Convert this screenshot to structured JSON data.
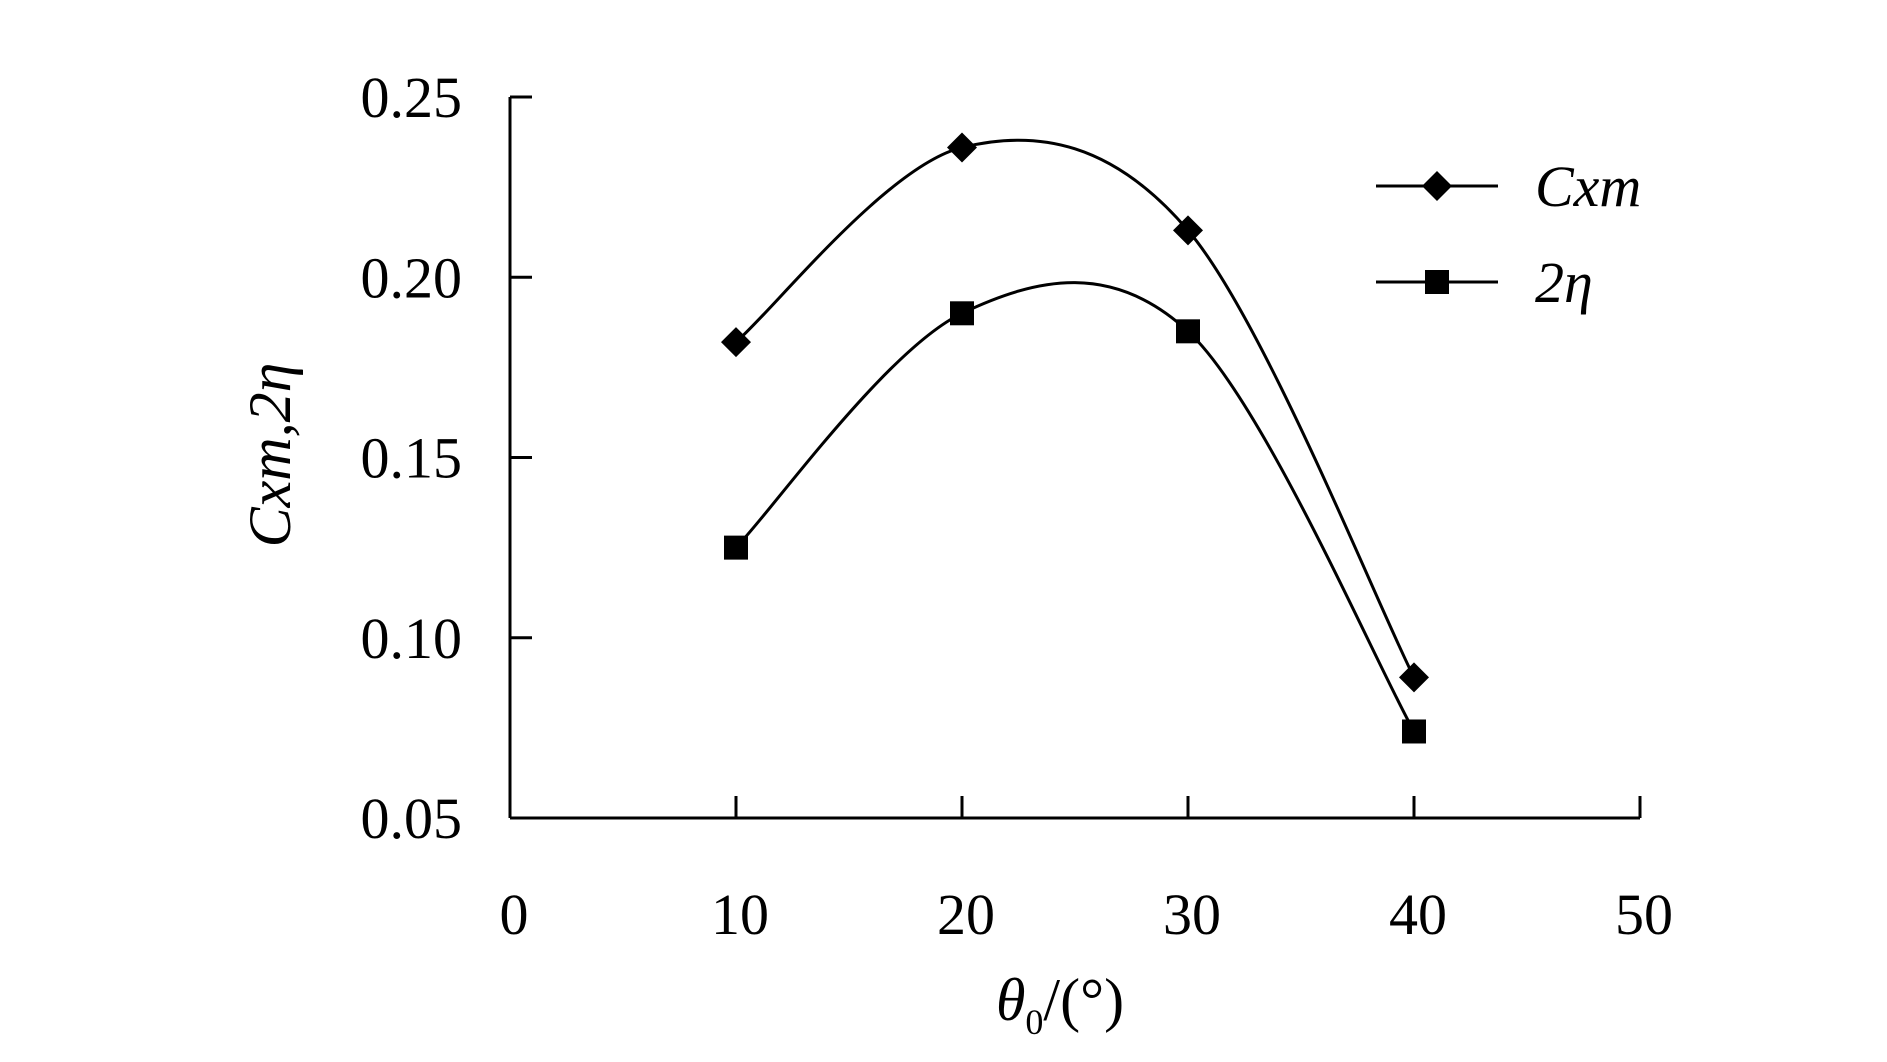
{
  "chart_data": {
    "type": "line",
    "xlabel": "θ0/(°)",
    "xlabel_parts": {
      "symbol": "θ",
      "subscript": "0",
      "unit": "/(°)"
    },
    "ylabel": "Cxm,2η",
    "xlim": [
      0,
      50
    ],
    "ylim": [
      0.05,
      0.25
    ],
    "x_ticks": [
      0,
      10,
      20,
      30,
      40,
      50
    ],
    "x_tick_labels": [
      "0",
      "10",
      "20",
      "30",
      "40",
      "50"
    ],
    "y_ticks": [
      0.05,
      0.1,
      0.15,
      0.2,
      0.25
    ],
    "y_tick_labels": [
      "0.05",
      "0.10",
      "0.15",
      "0.20",
      "0.25"
    ],
    "grid": false,
    "legend_position": "top-right",
    "smooth": true,
    "series": [
      {
        "name": "Cxm",
        "marker": "diamond",
        "color": "#000000",
        "x": [
          10,
          20,
          30,
          40
        ],
        "values": [
          0.182,
          0.236,
          0.213,
          0.089
        ]
      },
      {
        "name": "2η",
        "marker": "square",
        "color": "#000000",
        "x": [
          10,
          20,
          30,
          40
        ],
        "values": [
          0.125,
          0.19,
          0.185,
          0.074
        ]
      }
    ]
  }
}
